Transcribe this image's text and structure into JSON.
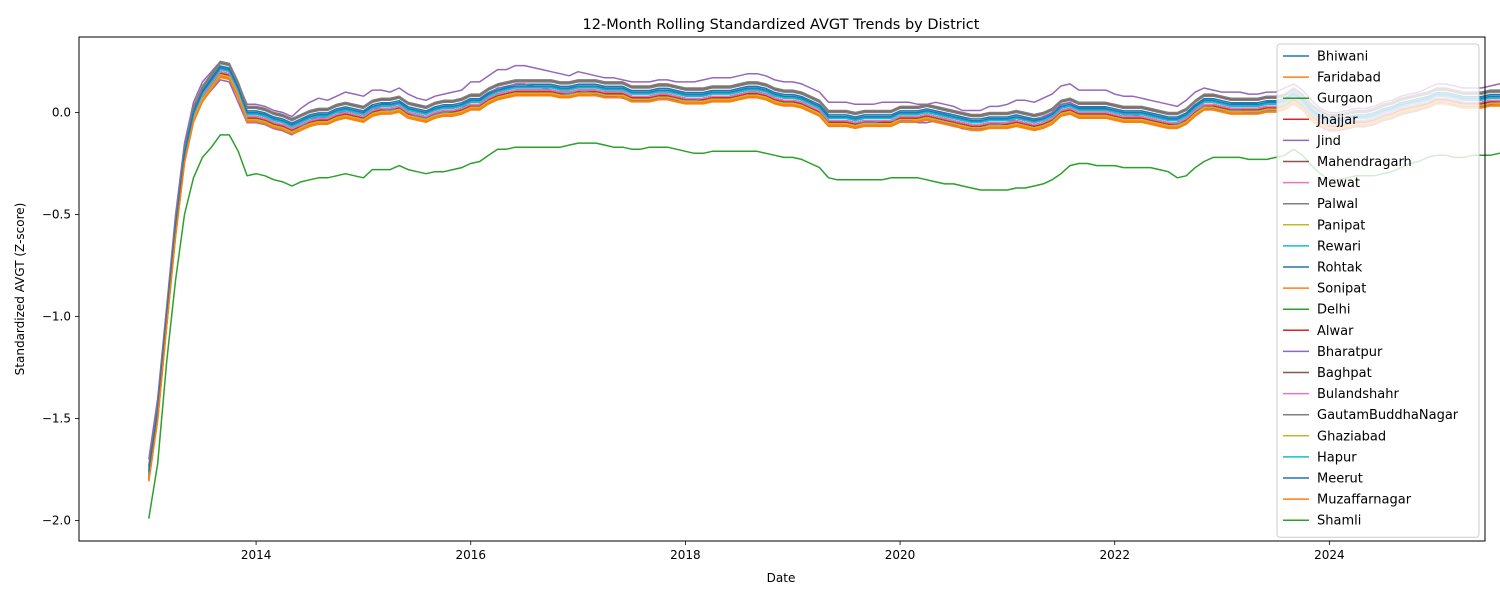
{
  "chart_data": {
    "type": "line",
    "title": "12-Month Rolling Standardized AVGT Trends by District",
    "xlabel": "Date",
    "ylabel": "Standardized AVGT (Z-score)",
    "xlim": [
      2012.35,
      2025.45
    ],
    "ylim": [
      -2.1,
      0.37
    ],
    "x_ticks": [
      2014,
      2016,
      2018,
      2020,
      2022,
      2024
    ],
    "x_tick_labels": [
      "2014",
      "2016",
      "2018",
      "2020",
      "2022",
      "2024"
    ],
    "y_ticks": [
      -2.0,
      -1.5,
      -1.0,
      -0.5,
      0.0
    ],
    "y_tick_labels": [
      "−2.0",
      "−1.5",
      "−1.0",
      "−0.5",
      "0.0"
    ],
    "grid": false,
    "legend_position": "top-right",
    "x_start": 2013.0,
    "x_step": 0.08333,
    "base_series": {
      "high": [
        -1.7,
        -1.4,
        -0.95,
        -0.5,
        -0.15,
        0.05,
        0.15,
        0.2,
        0.25,
        0.24,
        0.14,
        0.04,
        0.04,
        0.03,
        0.01,
        0.0,
        -0.02,
        0.02,
        0.05,
        0.07,
        0.06,
        0.08,
        0.1,
        0.09,
        0.08,
        0.11,
        0.11,
        0.1,
        0.12,
        0.09,
        0.07,
        0.06,
        0.08,
        0.09,
        0.1,
        0.11,
        0.15,
        0.15,
        0.18,
        0.21,
        0.21,
        0.23,
        0.23,
        0.22,
        0.21,
        0.2,
        0.19,
        0.18,
        0.2,
        0.19,
        0.18,
        0.17,
        0.17,
        0.16,
        0.15,
        0.15,
        0.15,
        0.16,
        0.16,
        0.15,
        0.15,
        0.15,
        0.16,
        0.17,
        0.17,
        0.17,
        0.18,
        0.19,
        0.19,
        0.18,
        0.16,
        0.15,
        0.15,
        0.14,
        0.12,
        0.1,
        0.05,
        0.05,
        0.05,
        0.04,
        0.04,
        0.04,
        0.05,
        0.05,
        0.05,
        0.05,
        0.04,
        0.04,
        0.05,
        0.04,
        0.03,
        0.01,
        0.01,
        0.01,
        0.03,
        0.03,
        0.04,
        0.06,
        0.06,
        0.05,
        0.07,
        0.09,
        0.13,
        0.14,
        0.11,
        0.11,
        0.11,
        0.11,
        0.09,
        0.08,
        0.08,
        0.07,
        0.06,
        0.05,
        0.04,
        0.03,
        0.06,
        0.1,
        0.12,
        0.11,
        0.1,
        0.1,
        0.1,
        0.09,
        0.09,
        0.1,
        0.1,
        0.12,
        0.14,
        0.11,
        0.06,
        0.02,
        0.0,
        0.0,
        0.01,
        0.02,
        0.02,
        0.03,
        0.05,
        0.06,
        0.08,
        0.09,
        0.1,
        0.12,
        0.14,
        0.14,
        0.13,
        0.12,
        0.12,
        0.12,
        0.13,
        0.14,
        0.15,
        0.14
      ],
      "mid": [
        -1.78,
        -1.48,
        -1.02,
        -0.58,
        -0.22,
        -0.02,
        0.08,
        0.14,
        0.2,
        0.19,
        0.1,
        -0.02,
        -0.02,
        -0.03,
        -0.05,
        -0.06,
        -0.08,
        -0.06,
        -0.04,
        -0.03,
        -0.03,
        -0.01,
        0.0,
        -0.01,
        -0.02,
        0.01,
        0.02,
        0.02,
        0.03,
        0.0,
        -0.01,
        -0.02,
        0.0,
        0.01,
        0.01,
        0.02,
        0.04,
        0.04,
        0.07,
        0.09,
        0.1,
        0.11,
        0.11,
        0.11,
        0.11,
        0.11,
        0.1,
        0.1,
        0.11,
        0.11,
        0.11,
        0.1,
        0.1,
        0.1,
        0.08,
        0.08,
        0.08,
        0.09,
        0.09,
        0.08,
        0.07,
        0.07,
        0.07,
        0.08,
        0.08,
        0.08,
        0.09,
        0.1,
        0.1,
        0.09,
        0.07,
        0.06,
        0.06,
        0.05,
        0.03,
        0.01,
        -0.04,
        -0.04,
        -0.04,
        -0.05,
        -0.04,
        -0.04,
        -0.04,
        -0.04,
        -0.02,
        -0.02,
        -0.02,
        -0.01,
        -0.02,
        -0.03,
        -0.04,
        -0.05,
        -0.06,
        -0.06,
        -0.05,
        -0.05,
        -0.05,
        -0.04,
        -0.05,
        -0.06,
        -0.05,
        -0.03,
        0.01,
        0.02,
        0.0,
        0.0,
        0.0,
        0.0,
        -0.01,
        -0.02,
        -0.02,
        -0.02,
        -0.03,
        -0.04,
        -0.05,
        -0.05,
        -0.03,
        0.01,
        0.04,
        0.04,
        0.03,
        0.02,
        0.02,
        0.02,
        0.02,
        0.03,
        0.03,
        0.04,
        0.07,
        0.04,
        -0.01,
        -0.04,
        -0.06,
        -0.06,
        -0.05,
        -0.04,
        -0.04,
        -0.03,
        -0.01,
        0.0,
        0.02,
        0.03,
        0.04,
        0.05,
        0.07,
        0.07,
        0.06,
        0.05,
        0.05,
        0.05,
        0.06,
        0.06,
        0.07,
        0.07
      ],
      "low": [
        -1.99,
        -1.72,
        -1.22,
        -0.82,
        -0.5,
        -0.32,
        -0.22,
        -0.17,
        -0.11,
        -0.11,
        -0.19,
        -0.31,
        -0.3,
        -0.31,
        -0.33,
        -0.34,
        -0.36,
        -0.34,
        -0.33,
        -0.32,
        -0.32,
        -0.31,
        -0.3,
        -0.31,
        -0.32,
        -0.28,
        -0.28,
        -0.28,
        -0.26,
        -0.28,
        -0.29,
        -0.3,
        -0.29,
        -0.29,
        -0.28,
        -0.27,
        -0.25,
        -0.24,
        -0.21,
        -0.18,
        -0.18,
        -0.17,
        -0.17,
        -0.17,
        -0.17,
        -0.17,
        -0.17,
        -0.16,
        -0.15,
        -0.15,
        -0.15,
        -0.16,
        -0.17,
        -0.17,
        -0.18,
        -0.18,
        -0.17,
        -0.17,
        -0.17,
        -0.18,
        -0.19,
        -0.2,
        -0.2,
        -0.19,
        -0.19,
        -0.19,
        -0.19,
        -0.19,
        -0.19,
        -0.2,
        -0.21,
        -0.22,
        -0.22,
        -0.23,
        -0.25,
        -0.27,
        -0.32,
        -0.33,
        -0.33,
        -0.33,
        -0.33,
        -0.33,
        -0.33,
        -0.32,
        -0.32,
        -0.32,
        -0.32,
        -0.33,
        -0.34,
        -0.35,
        -0.35,
        -0.36,
        -0.37,
        -0.38,
        -0.38,
        -0.38,
        -0.38,
        -0.37,
        -0.37,
        -0.36,
        -0.35,
        -0.33,
        -0.3,
        -0.26,
        -0.25,
        -0.25,
        -0.26,
        -0.26,
        -0.26,
        -0.27,
        -0.27,
        -0.27,
        -0.27,
        -0.28,
        -0.29,
        -0.32,
        -0.31,
        -0.27,
        -0.24,
        -0.22,
        -0.22,
        -0.22,
        -0.22,
        -0.23,
        -0.23,
        -0.23,
        -0.22,
        -0.21,
        -0.18,
        -0.21,
        -0.26,
        -0.3,
        -0.33,
        -0.33,
        -0.32,
        -0.31,
        -0.31,
        -0.31,
        -0.3,
        -0.29,
        -0.27,
        -0.25,
        -0.24,
        -0.22,
        -0.21,
        -0.21,
        -0.22,
        -0.22,
        -0.21,
        -0.21,
        -0.21,
        -0.2,
        -0.19,
        -0.19
      ]
    },
    "series": [
      {
        "name": "Bhiwani",
        "color": "#1f77b4",
        "base": "mid",
        "offset": 0.012
      },
      {
        "name": "Faridabad",
        "color": "#ff7f0e",
        "base": "mid",
        "offset": -0.028
      },
      {
        "name": "Gurgaon",
        "color": "#2ca02c",
        "base": "mid",
        "offset": 0.0
      },
      {
        "name": "Jhajjar",
        "color": "#d62728",
        "base": "mid",
        "offset": -0.008
      },
      {
        "name": "Jind",
        "color": "#9467bd",
        "base": "high",
        "offset": 0.0
      },
      {
        "name": "Mahendragarh",
        "color": "#8c564b",
        "base": "mid",
        "offset": 0.045
      },
      {
        "name": "Mewat",
        "color": "#e377c2",
        "base": "mid",
        "offset": 0.0
      },
      {
        "name": "Palwal",
        "color": "#7f7f7f",
        "base": "mid",
        "offset": 0.05
      },
      {
        "name": "Panipat",
        "color": "#bcbd22",
        "base": "mid",
        "offset": -0.022
      },
      {
        "name": "Rewari",
        "color": "#17becf",
        "base": "mid",
        "offset": 0.018
      },
      {
        "name": "Rohtak",
        "color": "#1f77b4",
        "base": "mid",
        "offset": 0.028
      },
      {
        "name": "Sonipat",
        "color": "#ff7f0e",
        "base": "mid",
        "offset": -0.02
      },
      {
        "name": "Delhi",
        "color": "#2ca02c",
        "base": "mid",
        "offset": 0.0
      },
      {
        "name": "Alwar",
        "color": "#d62728",
        "base": "mid",
        "offset": 0.0
      },
      {
        "name": "Bharatpur",
        "color": "#9467bd",
        "base": "high",
        "offset": -0.09
      },
      {
        "name": "Baghpat",
        "color": "#8c564b",
        "base": "mid",
        "offset": 0.0
      },
      {
        "name": "Bulandshahr",
        "color": "#e377c2",
        "base": "mid",
        "offset": 0.0
      },
      {
        "name": "GautamBuddhaNagar",
        "color": "#7f7f7f",
        "base": "mid",
        "offset": 0.04
      },
      {
        "name": "Ghaziabad",
        "color": "#bcbd22",
        "base": "mid",
        "offset": -0.015
      },
      {
        "name": "Hapur",
        "color": "#17becf",
        "base": "mid",
        "offset": 0.01
      },
      {
        "name": "Meerut",
        "color": "#1f77b4",
        "base": "mid",
        "offset": 0.02
      },
      {
        "name": "Muzaffarnagar",
        "color": "#ff7f0e",
        "base": "mid",
        "offset": -0.025
      },
      {
        "name": "Shamli",
        "color": "#2ca02c",
        "base": "low",
        "offset": 0.0
      }
    ]
  }
}
